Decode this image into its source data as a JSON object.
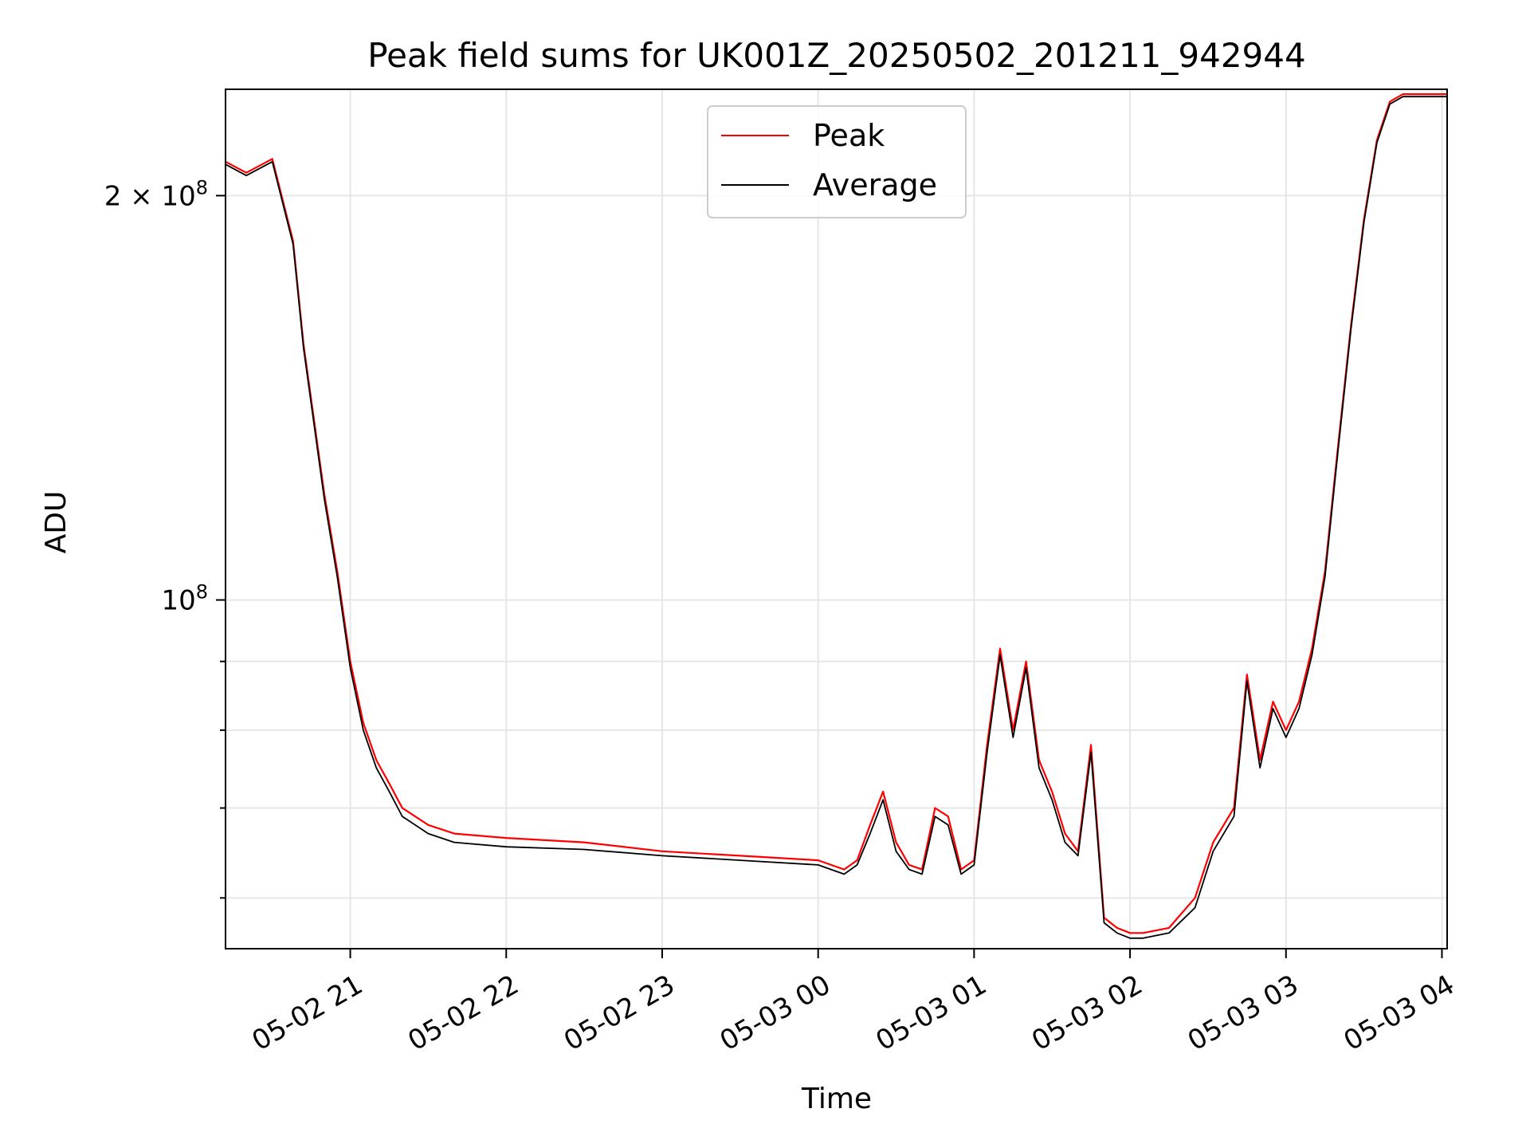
{
  "chart_data": {
    "type": "line",
    "title": "Peak field sums for UK001Z_20250502_201211_942944",
    "xlabel": "Time",
    "ylabel": "ADU",
    "x_scale": "time",
    "y_scale": "log",
    "xlim": [
      "2025-05-02 20:12",
      "2025-05-03 04:02"
    ],
    "ylim": [
      55000000,
      240000000
    ],
    "xticks": [
      "05-02 21",
      "05-02 22",
      "05-02 23",
      "05-03 00",
      "05-03 01",
      "05-03 02",
      "05-03 03",
      "05-03 04"
    ],
    "yticks_major": [
      {
        "label": "2 × 10^8",
        "value": 200000000
      },
      {
        "label": "10^8",
        "value": 100000000
      }
    ],
    "yticks_minor": [
      60000000,
      70000000,
      80000000,
      90000000
    ],
    "grid": true,
    "legend_position": "upper center",
    "colors": {
      "Peak": "#ff0000",
      "Average": "#000000"
    },
    "series": [
      {
        "name": "Peak",
        "color": "#ff0000",
        "x": [
          "2025-05-02 20:12",
          "2025-05-02 20:20",
          "2025-05-02 20:30",
          "2025-05-02 20:38",
          "2025-05-02 20:42",
          "2025-05-02 20:50",
          "2025-05-02 20:55",
          "2025-05-02 21:00",
          "2025-05-02 21:05",
          "2025-05-02 21:10",
          "2025-05-02 21:15",
          "2025-05-02 21:20",
          "2025-05-02 21:30",
          "2025-05-02 21:40",
          "2025-05-02 22:00",
          "2025-05-02 22:30",
          "2025-05-02 23:00",
          "2025-05-02 23:30",
          "2025-05-03 00:00",
          "2025-05-03 00:10",
          "2025-05-03 00:15",
          "2025-05-03 00:20",
          "2025-05-03 00:25",
          "2025-05-03 00:30",
          "2025-05-03 00:35",
          "2025-05-03 00:40",
          "2025-05-03 00:45",
          "2025-05-03 00:50",
          "2025-05-03 00:55",
          "2025-05-03 01:00",
          "2025-05-03 01:05",
          "2025-05-03 01:10",
          "2025-05-03 01:15",
          "2025-05-03 01:20",
          "2025-05-03 01:25",
          "2025-05-03 01:30",
          "2025-05-03 01:35",
          "2025-05-03 01:40",
          "2025-05-03 01:45",
          "2025-05-03 01:50",
          "2025-05-03 01:55",
          "2025-05-03 02:00",
          "2025-05-03 02:05",
          "2025-05-03 02:15",
          "2025-05-03 02:25",
          "2025-05-03 02:32",
          "2025-05-03 02:40",
          "2025-05-03 02:45",
          "2025-05-03 02:50",
          "2025-05-03 02:55",
          "2025-05-03 03:00",
          "2025-05-03 03:05",
          "2025-05-03 03:10",
          "2025-05-03 03:15",
          "2025-05-03 03:20",
          "2025-05-03 03:25",
          "2025-05-03 03:30",
          "2025-05-03 03:35",
          "2025-05-03 03:40",
          "2025-05-03 03:45",
          "2025-05-03 03:50",
          "2025-05-03 03:55",
          "2025-05-03 04:02"
        ],
        "y": [
          212000000,
          208000000,
          213000000,
          185000000,
          155000000,
          120000000,
          105000000,
          90000000,
          81000000,
          76000000,
          73000000,
          70000000,
          68000000,
          67000000,
          66500000,
          66000000,
          65000000,
          64500000,
          64000000,
          63000000,
          64000000,
          68000000,
          72000000,
          66000000,
          63500000,
          63000000,
          70000000,
          69000000,
          63000000,
          64000000,
          78000000,
          92000000,
          80000000,
          90000000,
          76000000,
          72000000,
          67000000,
          65000000,
          78000000,
          58000000,
          57000000,
          56500000,
          56500000,
          57000000,
          60000000,
          66000000,
          70000000,
          88000000,
          76000000,
          84000000,
          80000000,
          84000000,
          92000000,
          105000000,
          130000000,
          160000000,
          192000000,
          220000000,
          235000000,
          238000000,
          238000000,
          238000000,
          238000000
        ]
      },
      {
        "name": "Average",
        "color": "#000000",
        "x": [
          "2025-05-02 20:12",
          "2025-05-02 20:20",
          "2025-05-02 20:30",
          "2025-05-02 20:38",
          "2025-05-02 20:42",
          "2025-05-02 20:50",
          "2025-05-02 20:55",
          "2025-05-02 21:00",
          "2025-05-02 21:05",
          "2025-05-02 21:10",
          "2025-05-02 21:15",
          "2025-05-02 21:20",
          "2025-05-02 21:30",
          "2025-05-02 21:40",
          "2025-05-02 22:00",
          "2025-05-02 22:30",
          "2025-05-02 23:00",
          "2025-05-02 23:30",
          "2025-05-03 00:00",
          "2025-05-03 00:10",
          "2025-05-03 00:15",
          "2025-05-03 00:20",
          "2025-05-03 00:25",
          "2025-05-03 00:30",
          "2025-05-03 00:35",
          "2025-05-03 00:40",
          "2025-05-03 00:45",
          "2025-05-03 00:50",
          "2025-05-03 00:55",
          "2025-05-03 01:00",
          "2025-05-03 01:05",
          "2025-05-03 01:10",
          "2025-05-03 01:15",
          "2025-05-03 01:20",
          "2025-05-03 01:25",
          "2025-05-03 01:30",
          "2025-05-03 01:35",
          "2025-05-03 01:40",
          "2025-05-03 01:45",
          "2025-05-03 01:50",
          "2025-05-03 01:55",
          "2025-05-03 02:00",
          "2025-05-03 02:05",
          "2025-05-03 02:15",
          "2025-05-03 02:25",
          "2025-05-03 02:32",
          "2025-05-03 02:40",
          "2025-05-03 02:45",
          "2025-05-03 02:50",
          "2025-05-03 02:55",
          "2025-05-03 03:00",
          "2025-05-03 03:05",
          "2025-05-03 03:10",
          "2025-05-03 03:15",
          "2025-05-03 03:20",
          "2025-05-03 03:25",
          "2025-05-03 03:30",
          "2025-05-03 03:35",
          "2025-05-03 03:40",
          "2025-05-03 03:45",
          "2025-05-03 03:50",
          "2025-05-03 03:55",
          "2025-05-03 04:02"
        ],
        "y": [
          211000000,
          207000000,
          212000000,
          184000000,
          154000000,
          119000000,
          104000000,
          89000000,
          80000000,
          75000000,
          72000000,
          69000000,
          67000000,
          66000000,
          65500000,
          65200000,
          64500000,
          64000000,
          63500000,
          62500000,
          63500000,
          67000000,
          71000000,
          65000000,
          63000000,
          62500000,
          69000000,
          68000000,
          62500000,
          63500000,
          77000000,
          91000000,
          79000000,
          89000000,
          75000000,
          71000000,
          66000000,
          64500000,
          77000000,
          57500000,
          56500000,
          56000000,
          56000000,
          56500000,
          59000000,
          65000000,
          69000000,
          87000000,
          75000000,
          83000000,
          79000000,
          83000000,
          91000000,
          104000000,
          129000000,
          159000000,
          191000000,
          219000000,
          234000000,
          237000000,
          237000000,
          237000000,
          237000000
        ]
      }
    ]
  }
}
